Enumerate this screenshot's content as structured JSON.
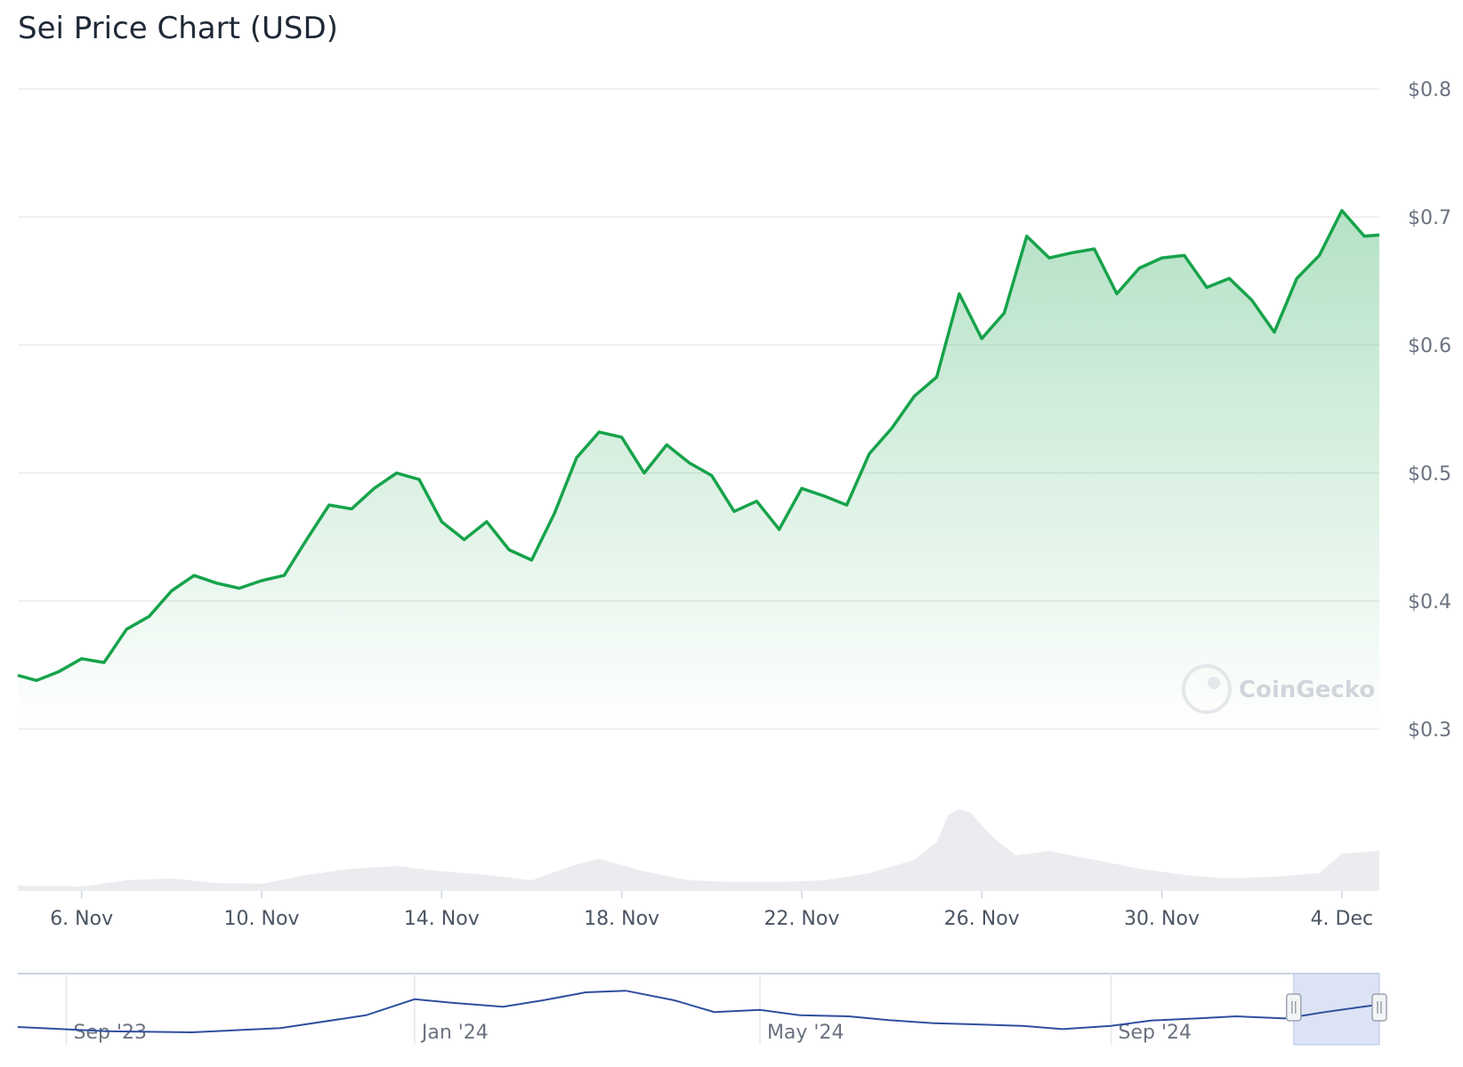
{
  "chart_data": {
    "type": "line",
    "title": "Sei Price Chart (USD)",
    "currency": "USD",
    "yticks": [
      "$0.3",
      "$0.4",
      "$0.5",
      "$0.6",
      "$0.7",
      "$0.8"
    ],
    "ytick_values": [
      0.3,
      0.4,
      0.5,
      0.6,
      0.7,
      0.8
    ],
    "ylim": [
      0.3,
      0.8
    ],
    "xlim_days": [
      "2024-11-04T14:00",
      "2024-12-04T20:00"
    ],
    "xticks": [
      {
        "label": "6. Nov",
        "date": "2024-11-06"
      },
      {
        "label": "10. Nov",
        "date": "2024-11-10"
      },
      {
        "label": "14. Nov",
        "date": "2024-11-14"
      },
      {
        "label": "18. Nov",
        "date": "2024-11-18"
      },
      {
        "label": "22. Nov",
        "date": "2024-11-22"
      },
      {
        "label": "26. Nov",
        "date": "2024-11-26"
      },
      {
        "label": "30. Nov",
        "date": "2024-11-30"
      },
      {
        "label": "4. Dec",
        "date": "2024-12-04"
      }
    ],
    "grid": true,
    "series": [
      {
        "name": "",
        "color": "#16a34a",
        "points": [
          [
            "2024-11-04T14:00",
            0.342
          ],
          [
            "2024-11-05T00:00",
            0.338
          ],
          [
            "2024-11-05T12:00",
            0.345
          ],
          [
            "2024-11-06T00:00",
            0.355
          ],
          [
            "2024-11-06T12:00",
            0.352
          ],
          [
            "2024-11-07T00:00",
            0.378
          ],
          [
            "2024-11-07T12:00",
            0.388
          ],
          [
            "2024-11-08T00:00",
            0.408
          ],
          [
            "2024-11-08T12:00",
            0.42
          ],
          [
            "2024-11-09T00:00",
            0.414
          ],
          [
            "2024-11-09T12:00",
            0.41
          ],
          [
            "2024-11-10T00:00",
            0.416
          ],
          [
            "2024-11-10T12:00",
            0.42
          ],
          [
            "2024-11-11T00:00",
            0.448
          ],
          [
            "2024-11-11T12:00",
            0.475
          ],
          [
            "2024-11-12T00:00",
            0.472
          ],
          [
            "2024-11-12T12:00",
            0.488
          ],
          [
            "2024-11-13T00:00",
            0.5
          ],
          [
            "2024-11-13T12:00",
            0.495
          ],
          [
            "2024-11-14T00:00",
            0.462
          ],
          [
            "2024-11-14T12:00",
            0.448
          ],
          [
            "2024-11-15T00:00",
            0.462
          ],
          [
            "2024-11-15T12:00",
            0.44
          ],
          [
            "2024-11-16T00:00",
            0.432
          ],
          [
            "2024-11-16T12:00",
            0.468
          ],
          [
            "2024-11-17T00:00",
            0.512
          ],
          [
            "2024-11-17T12:00",
            0.532
          ],
          [
            "2024-11-18T00:00",
            0.528
          ],
          [
            "2024-11-18T12:00",
            0.5
          ],
          [
            "2024-11-19T00:00",
            0.522
          ],
          [
            "2024-11-19T12:00",
            0.508
          ],
          [
            "2024-11-20T00:00",
            0.498
          ],
          [
            "2024-11-20T12:00",
            0.47
          ],
          [
            "2024-11-21T00:00",
            0.478
          ],
          [
            "2024-11-21T12:00",
            0.456
          ],
          [
            "2024-11-22T00:00",
            0.488
          ],
          [
            "2024-11-22T12:00",
            0.482
          ],
          [
            "2024-11-23T00:00",
            0.475
          ],
          [
            "2024-11-23T12:00",
            0.515
          ],
          [
            "2024-11-24T00:00",
            0.535
          ],
          [
            "2024-11-24T12:00",
            0.56
          ],
          [
            "2024-11-25T00:00",
            0.575
          ],
          [
            "2024-11-25T12:00",
            0.64
          ],
          [
            "2024-11-26T00:00",
            0.605
          ],
          [
            "2024-11-26T12:00",
            0.625
          ],
          [
            "2024-11-27T00:00",
            0.685
          ],
          [
            "2024-11-27T12:00",
            0.668
          ],
          [
            "2024-11-28T00:00",
            0.672
          ],
          [
            "2024-11-28T12:00",
            0.675
          ],
          [
            "2024-11-29T00:00",
            0.64
          ],
          [
            "2024-11-29T12:00",
            0.66
          ],
          [
            "2024-11-30T00:00",
            0.668
          ],
          [
            "2024-11-30T12:00",
            0.67
          ],
          [
            "2024-12-01T00:00",
            0.645
          ],
          [
            "2024-12-01T12:00",
            0.652
          ],
          [
            "2024-12-02T00:00",
            0.635
          ],
          [
            "2024-12-02T12:00",
            0.61
          ],
          [
            "2024-12-03T00:00",
            0.652
          ],
          [
            "2024-12-03T12:00",
            0.67
          ],
          [
            "2024-12-04T00:00",
            0.705
          ],
          [
            "2024-12-04T12:00",
            0.685
          ],
          [
            "2024-12-04T20:00",
            0.686
          ]
        ]
      }
    ],
    "volume": {
      "color": "#e5e7eb",
      "points": [
        [
          "2024-11-04T14:00",
          0.06
        ],
        [
          "2024-11-06T00:00",
          0.05
        ],
        [
          "2024-11-07T00:00",
          0.12
        ],
        [
          "2024-11-08T00:00",
          0.14
        ],
        [
          "2024-11-09T00:00",
          0.09
        ],
        [
          "2024-11-10T00:00",
          0.08
        ],
        [
          "2024-11-11T00:00",
          0.18
        ],
        [
          "2024-11-12T00:00",
          0.25
        ],
        [
          "2024-11-13T00:00",
          0.28
        ],
        [
          "2024-11-14T00:00",
          0.22
        ],
        [
          "2024-11-15T00:00",
          0.18
        ],
        [
          "2024-11-16T00:00",
          0.12
        ],
        [
          "2024-11-17T00:00",
          0.3
        ],
        [
          "2024-11-17T12:00",
          0.36
        ],
        [
          "2024-11-18T12:00",
          0.22
        ],
        [
          "2024-11-19T12:00",
          0.12
        ],
        [
          "2024-11-20T12:00",
          0.1
        ],
        [
          "2024-11-21T12:00",
          0.1
        ],
        [
          "2024-11-22T12:00",
          0.12
        ],
        [
          "2024-11-23T12:00",
          0.2
        ],
        [
          "2024-11-24T12:00",
          0.35
        ],
        [
          "2024-11-25T00:00",
          0.55
        ],
        [
          "2024-11-25T06:00",
          0.85
        ],
        [
          "2024-11-25T12:00",
          0.92
        ],
        [
          "2024-11-25T18:00",
          0.88
        ],
        [
          "2024-11-26T06:00",
          0.6
        ],
        [
          "2024-11-26T18:00",
          0.4
        ],
        [
          "2024-11-27T12:00",
          0.45
        ],
        [
          "2024-11-28T12:00",
          0.35
        ],
        [
          "2024-11-29T12:00",
          0.25
        ],
        [
          "2024-11-30T12:00",
          0.18
        ],
        [
          "2024-12-01T12:00",
          0.14
        ],
        [
          "2024-12-02T12:00",
          0.16
        ],
        [
          "2024-12-03T12:00",
          0.2
        ],
        [
          "2024-12-04T00:00",
          0.42
        ],
        [
          "2024-12-04T20:00",
          0.45
        ]
      ]
    },
    "navigator": {
      "color": "#2f4f9e",
      "xticks": [
        "Sep '23",
        "Jan '24",
        "May '24",
        "Sep '24"
      ],
      "selected_range": [
        "2024-11-04",
        "2024-12-04"
      ],
      "points": [
        [
          "2023-08-15",
          0.2
        ],
        [
          "2023-09-15",
          0.12
        ],
        [
          "2023-10-15",
          0.1
        ],
        [
          "2023-11-15",
          0.18
        ],
        [
          "2023-12-15",
          0.42
        ],
        [
          "2024-01-01",
          0.72
        ],
        [
          "2024-01-15",
          0.65
        ],
        [
          "2024-02-01",
          0.58
        ],
        [
          "2024-02-15",
          0.7
        ],
        [
          "2024-03-01",
          0.85
        ],
        [
          "2024-03-15",
          0.88
        ],
        [
          "2024-04-01",
          0.7
        ],
        [
          "2024-04-15",
          0.48
        ],
        [
          "2024-05-01",
          0.52
        ],
        [
          "2024-05-15",
          0.42
        ],
        [
          "2024-06-01",
          0.4
        ],
        [
          "2024-06-15",
          0.33
        ],
        [
          "2024-07-01",
          0.27
        ],
        [
          "2024-07-15",
          0.25
        ],
        [
          "2024-08-01",
          0.22
        ],
        [
          "2024-08-15",
          0.16
        ],
        [
          "2024-09-01",
          0.22
        ],
        [
          "2024-09-15",
          0.32
        ],
        [
          "2024-10-01",
          0.36
        ],
        [
          "2024-10-15",
          0.4
        ],
        [
          "2024-11-01",
          0.36
        ],
        [
          "2024-11-15",
          0.48
        ],
        [
          "2024-12-01",
          0.6
        ],
        [
          "2024-12-04",
          0.66
        ]
      ]
    },
    "watermark": "CoinGecko"
  }
}
